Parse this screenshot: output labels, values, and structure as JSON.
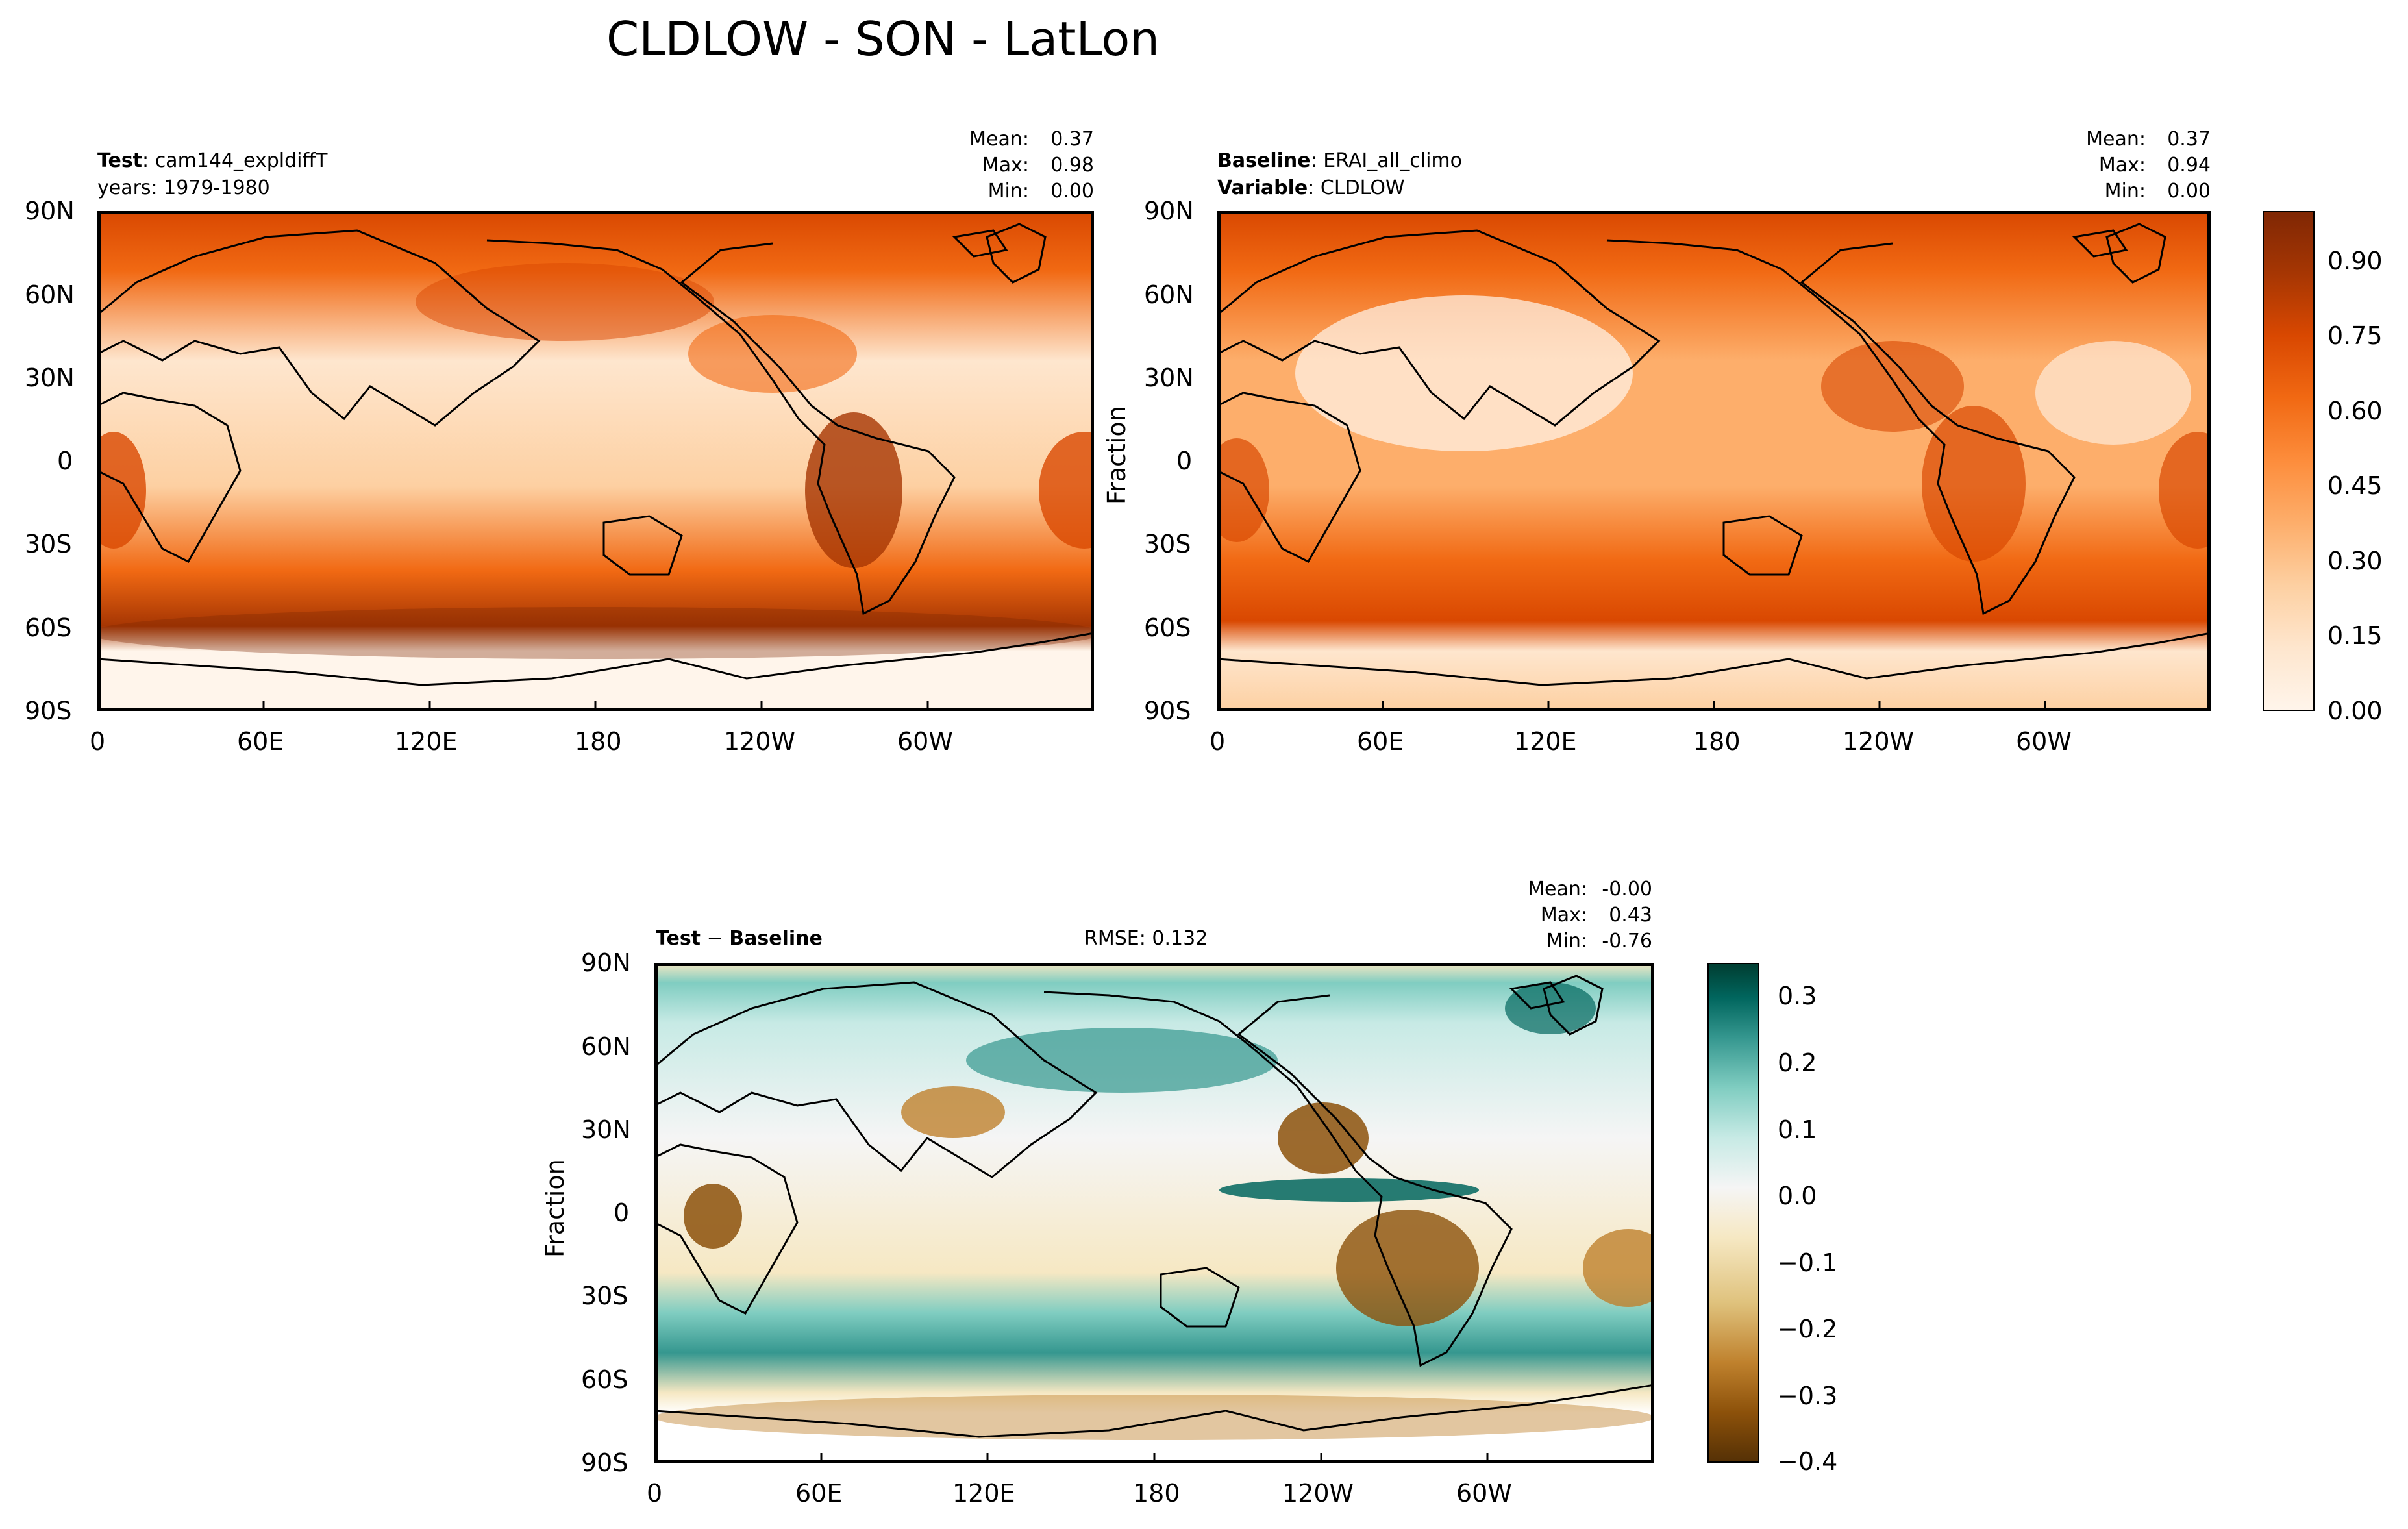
{
  "figure": {
    "title": "CLDLOW - SON - LatLon"
  },
  "panels": {
    "test": {
      "label_key": "Test",
      "label_val": "cam144_expldiffT",
      "line2": "years: 1979-1980",
      "stats": {
        "mean_label": "Mean:",
        "mean": "0.37",
        "max_label": "Max:",
        "max": "0.98",
        "min_label": "Min:",
        "min": "0.00"
      }
    },
    "baseline": {
      "label1_key": "Baseline",
      "label1_val": "ERAI_all_climo",
      "label2_key": "Variable",
      "label2_val": "CLDLOW",
      "ylabel": "Fraction",
      "stats": {
        "mean_label": "Mean:",
        "mean": "0.37",
        "max_label": "Max:",
        "max": "0.94",
        "min_label": "Min:",
        "min": "0.00"
      }
    },
    "diff": {
      "label_key": "Test",
      "label_sep": "−",
      "label_val": "Baseline",
      "rmse": "RMSE: 0.132",
      "ylabel": "Fraction",
      "stats": {
        "mean_label": "Mean:",
        "mean": "-0.00",
        "max_label": "Max:",
        "max": "0.43",
        "min_label": "Min:",
        "min": "-0.76"
      }
    }
  },
  "chart_data": [
    {
      "type": "heatmap",
      "name": "Test",
      "x_ticks": [
        "0",
        "60E",
        "120E",
        "180",
        "120W",
        "60W"
      ],
      "y_ticks": [
        "90N",
        "60N",
        "30N",
        "0",
        "30S",
        "60S",
        "90S"
      ],
      "colormap": "Oranges",
      "mean": 0.37,
      "max": 0.98,
      "min": 0.0
    },
    {
      "type": "heatmap",
      "name": "Baseline",
      "x_ticks": [
        "0",
        "60E",
        "120E",
        "180",
        "120W",
        "60W"
      ],
      "y_ticks": [
        "90N",
        "60N",
        "30N",
        "0",
        "30S",
        "60S",
        "90S"
      ],
      "colormap": "Oranges",
      "mean": 0.37,
      "max": 0.94,
      "min": 0.0,
      "colorbar": {
        "ticks": [
          "0.00",
          "0.15",
          "0.30",
          "0.45",
          "0.60",
          "0.75",
          "0.90"
        ],
        "range": [
          0.0,
          1.0
        ],
        "levels": 20
      }
    },
    {
      "type": "heatmap",
      "name": "Test − Baseline",
      "x_ticks": [
        "0",
        "60E",
        "120E",
        "180",
        "120W",
        "60W"
      ],
      "y_ticks": [
        "90N",
        "60N",
        "30N",
        "0",
        "30S",
        "60S",
        "90S"
      ],
      "colormap": "BrBG",
      "mean": -0.0,
      "max": 0.43,
      "min": -0.76,
      "rmse": 0.132,
      "colorbar": {
        "ticks": [
          "0.3",
          "0.2",
          "0.1",
          "0.0",
          "−0.1",
          "−0.2",
          "−0.3",
          "−0.4"
        ],
        "range": [
          -0.4,
          0.35
        ]
      }
    }
  ],
  "colors": {
    "oranges": [
      "#fff5eb",
      "#fee6ce",
      "#fdd0a2",
      "#fdae6b",
      "#fd8d3c",
      "#f16913",
      "#d94801",
      "#a63603",
      "#7f2704"
    ],
    "brbg": [
      "#543005",
      "#8c510a",
      "#bf812d",
      "#dfc27d",
      "#f6e8c3",
      "#f5f5f5",
      "#c7eae5",
      "#80cdc1",
      "#35978f",
      "#01665e",
      "#003c30"
    ]
  }
}
